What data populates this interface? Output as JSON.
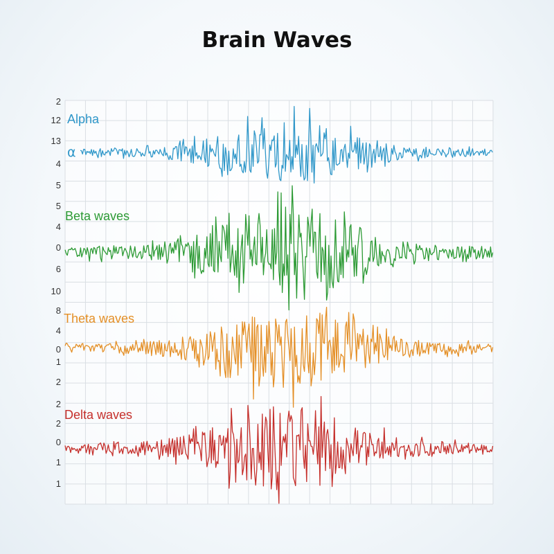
{
  "title": "Brain Waves",
  "chart_data": {
    "type": "line",
    "title": "Brain Waves",
    "grid": true,
    "tick_labels": [
      "2",
      "12",
      "13",
      "4",
      "5",
      "5",
      "4",
      "0",
      "6",
      "10",
      "8",
      "4",
      "0",
      "1",
      "2",
      "2",
      "2",
      "0",
      "1",
      "1"
    ],
    "series": [
      {
        "name": "Alpha",
        "symbol": "α",
        "color": "#2f97c9",
        "amplitude": 45,
        "seed": 11
      },
      {
        "name": "Beta waves",
        "color": "#2c9a34",
        "amplitude": 70,
        "seed": 23
      },
      {
        "name": "Theta waves",
        "color": "#e48f26",
        "amplitude": 60,
        "seed": 37
      },
      {
        "name": "Delta waves",
        "color": "#c52f2b",
        "amplitude": 62,
        "seed": 51
      }
    ]
  }
}
